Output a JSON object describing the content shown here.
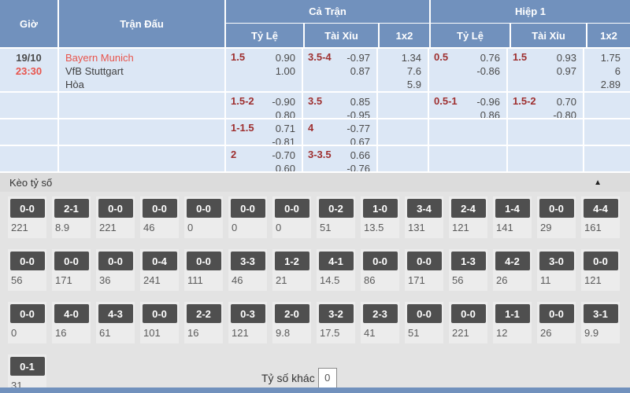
{
  "table": {
    "headers": {
      "time": "Giờ",
      "match": "Trận Đấu",
      "full_match": "Cả Trận",
      "first_half": "Hiệp 1",
      "handicap": "Tỷ Lệ",
      "over_under": "Tài Xỉu",
      "one_x_two": "1x2"
    },
    "match": {
      "date": "19/10",
      "time": "23:30",
      "home": "Bayern Munich",
      "away": "VfB Stuttgart",
      "draw": "Hòa"
    },
    "rows": [
      {
        "ft": {
          "hdp": {
            "line": "1.5",
            "o1": "0.90",
            "o2": "1.00"
          },
          "ou": {
            "line": "3.5-4",
            "o1": "-0.97",
            "o2": "0.87"
          },
          "x12": {
            "o1": "1.34",
            "o2": "7.6",
            "o3": "5.9"
          }
        },
        "h1": {
          "hdp": {
            "line": "0.5",
            "o1": "0.76",
            "o2": "-0.86"
          },
          "ou": {
            "line": "1.5",
            "o1": "0.93",
            "o2": "0.97"
          },
          "x12": {
            "o1": "1.75",
            "o2": "6",
            "o3": "2.89"
          }
        }
      },
      {
        "ft": {
          "hdp": {
            "line": "1.5-2",
            "o1": "-0.90",
            "o2": "0.80"
          },
          "ou": {
            "line": "3.5",
            "o1": "0.85",
            "o2": "-0.95"
          }
        },
        "h1": {
          "hdp": {
            "line": "0.5-1",
            "o1": "-0.96",
            "o2": "0.86"
          },
          "ou": {
            "line": "1.5-2",
            "o1": "0.70",
            "o2": "-0.80"
          }
        }
      },
      {
        "ft": {
          "hdp": {
            "line": "1-1.5",
            "o1": "0.71",
            "o2": "-0.81"
          },
          "ou": {
            "line": "4",
            "o1": "-0.77",
            "o2": "0.67"
          }
        }
      },
      {
        "ft": {
          "hdp": {
            "line": "2",
            "o1": "-0.70",
            "o2": "0.60"
          },
          "ou": {
            "line": "3-3.5",
            "o1": "0.66",
            "o2": "-0.76"
          }
        }
      }
    ]
  },
  "score_section": {
    "title": "Kèo tỷ số",
    "collapse_icon": "▲",
    "rows": [
      [
        {
          "score": "0-0",
          "odds": "221"
        },
        {
          "score": "2-1",
          "odds": "8.9"
        },
        {
          "score": "0-0",
          "odds": "221"
        },
        {
          "score": "0-0",
          "odds": "46"
        },
        {
          "score": "0-0",
          "odds": "0"
        },
        {
          "score": "0-0",
          "odds": "0"
        },
        {
          "score": "0-0",
          "odds": "0"
        },
        {
          "score": "0-2",
          "odds": "51"
        },
        {
          "score": "1-0",
          "odds": "13.5"
        },
        {
          "score": "3-4",
          "odds": "131"
        },
        {
          "score": "2-4",
          "odds": "121"
        },
        {
          "score": "1-4",
          "odds": "141"
        },
        {
          "score": "0-0",
          "odds": "29"
        },
        {
          "score": "4-4",
          "odds": "161"
        }
      ],
      [
        {
          "score": "0-0",
          "odds": "56"
        },
        {
          "score": "0-0",
          "odds": "171"
        },
        {
          "score": "0-0",
          "odds": "36"
        },
        {
          "score": "0-4",
          "odds": "241"
        },
        {
          "score": "0-0",
          "odds": "111"
        },
        {
          "score": "3-3",
          "odds": "46"
        },
        {
          "score": "1-2",
          "odds": "21"
        },
        {
          "score": "4-1",
          "odds": "14.5"
        },
        {
          "score": "0-0",
          "odds": "86"
        },
        {
          "score": "0-0",
          "odds": "171"
        },
        {
          "score": "1-3",
          "odds": "56"
        },
        {
          "score": "4-2",
          "odds": "26"
        },
        {
          "score": "3-0",
          "odds": "11"
        },
        {
          "score": "0-0",
          "odds": "121"
        }
      ],
      [
        {
          "score": "0-0",
          "odds": "0"
        },
        {
          "score": "4-0",
          "odds": "16"
        },
        {
          "score": "4-3",
          "odds": "61"
        },
        {
          "score": "0-0",
          "odds": "101"
        },
        {
          "score": "2-2",
          "odds": "16"
        },
        {
          "score": "0-3",
          "odds": "121"
        },
        {
          "score": "2-0",
          "odds": "9.8"
        },
        {
          "score": "3-2",
          "odds": "17.5"
        },
        {
          "score": "2-3",
          "odds": "41"
        },
        {
          "score": "0-0",
          "odds": "51"
        },
        {
          "score": "0-0",
          "odds": "221"
        },
        {
          "score": "1-1",
          "odds": "12"
        },
        {
          "score": "0-0",
          "odds": "26"
        },
        {
          "score": "3-1",
          "odds": "9.9"
        }
      ],
      [
        {
          "score": "0-1",
          "odds": "31"
        }
      ]
    ],
    "other_score_label": "Tỷ số khác",
    "other_score_value": "0"
  },
  "colors": {
    "header_bg": "#7191bd",
    "row_bg": "#dce7f5",
    "accent_red": "#e8544c",
    "line_red": "#9e2f2f",
    "score_button_bg": "#4f4f4f",
    "section_bg": "#e3e3e3"
  }
}
